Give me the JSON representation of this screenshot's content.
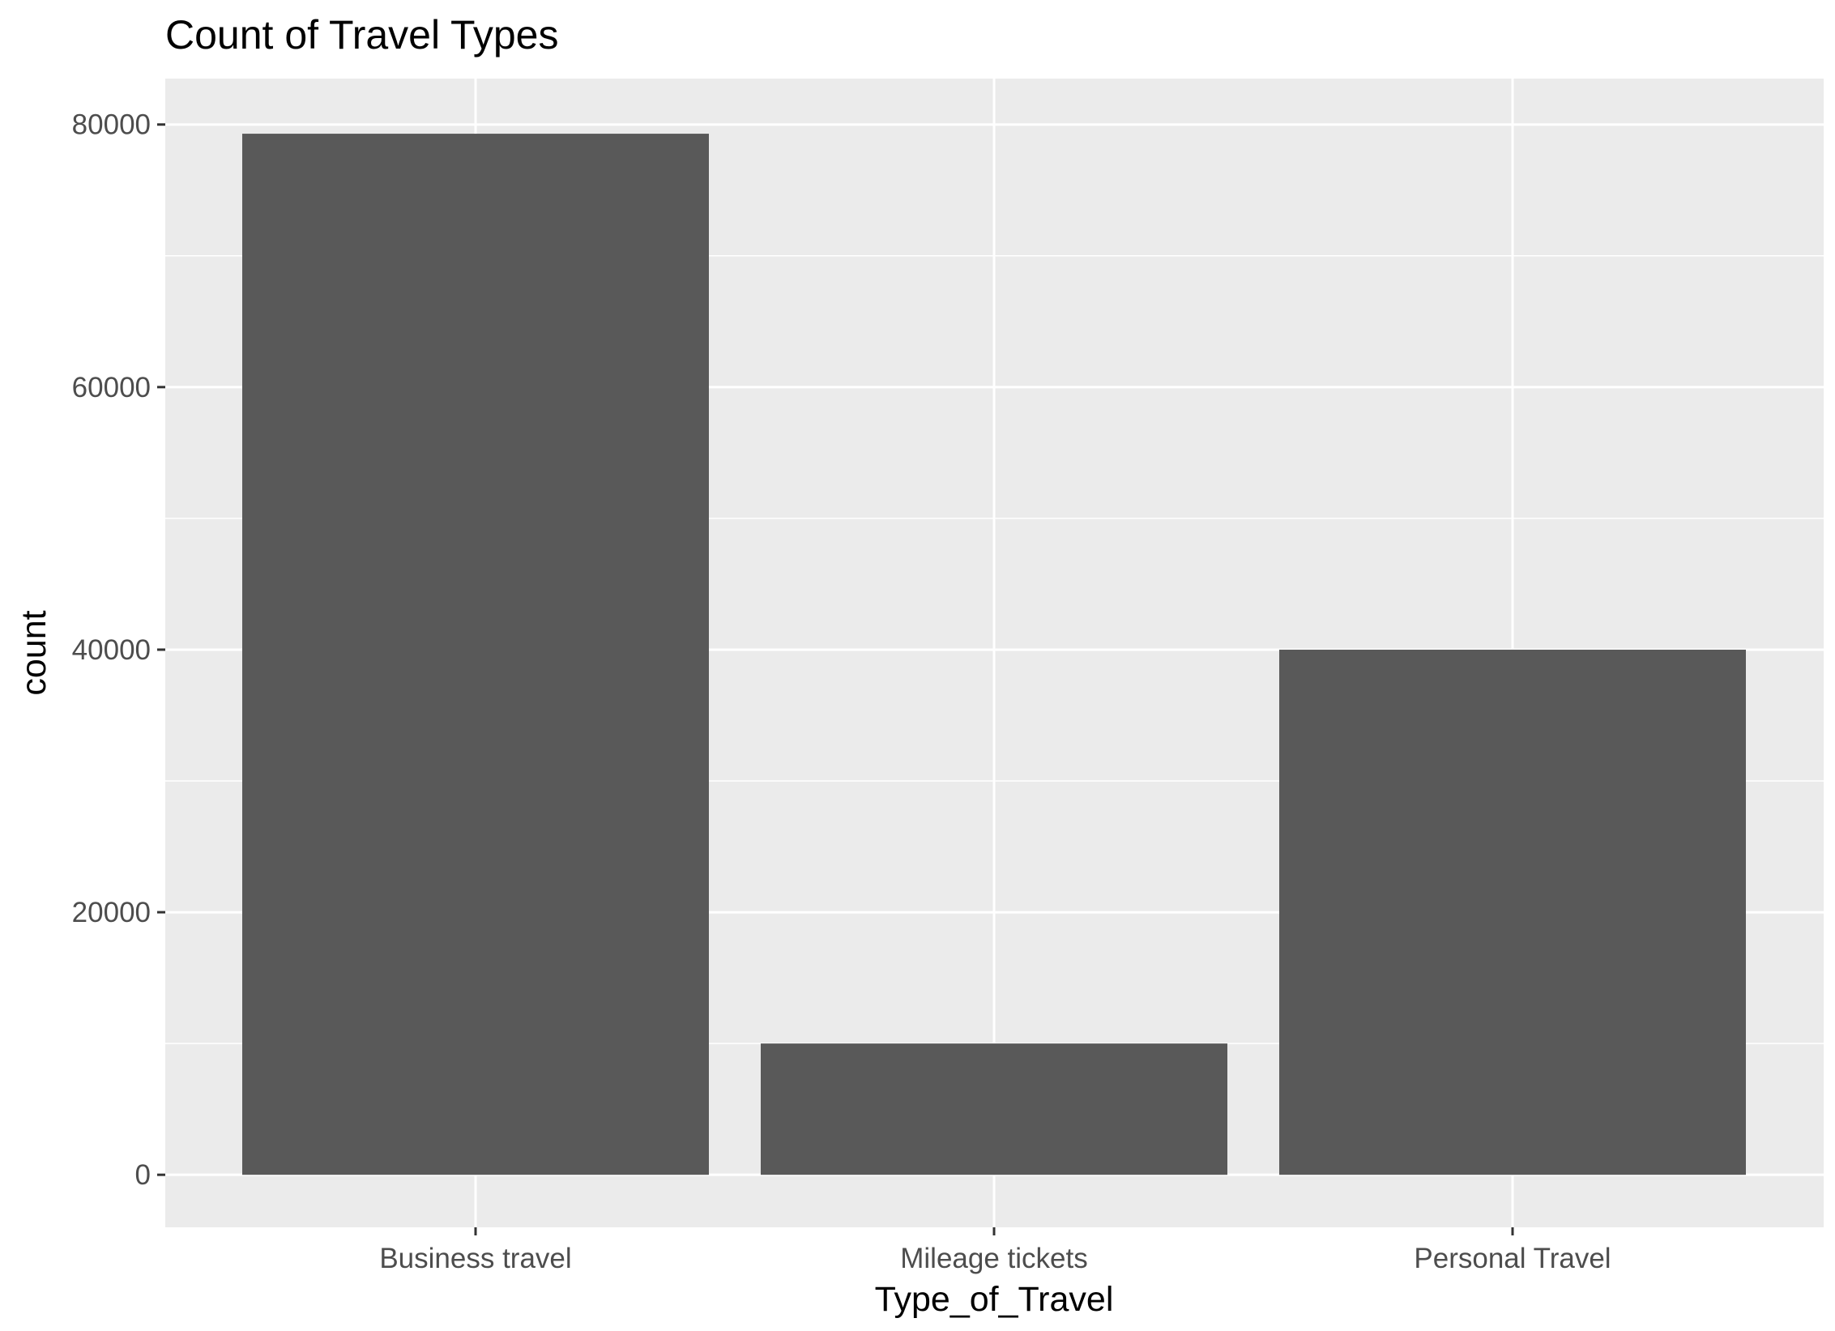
{
  "chart_data": {
    "type": "bar",
    "title": "Count of Travel Types",
    "xlabel": "Type_of_Travel",
    "ylabel": "count",
    "categories": [
      "Business travel",
      "Mileage tickets",
      "Personal Travel"
    ],
    "values": [
      79300,
      10000,
      40000
    ],
    "ylim": [
      -4000,
      83500
    ],
    "yticks": [
      0,
      20000,
      40000,
      60000,
      80000
    ],
    "ytick_labels": [
      "0",
      "20000",
      "40000",
      "60000",
      "80000"
    ],
    "grid": true,
    "legend": "none",
    "colors": {
      "bar": "#595959",
      "panel_background": "#ebebeb",
      "grid_line": "#ffffff",
      "tick_mark": "#333333",
      "tick_label": "#4d4d4d"
    }
  }
}
